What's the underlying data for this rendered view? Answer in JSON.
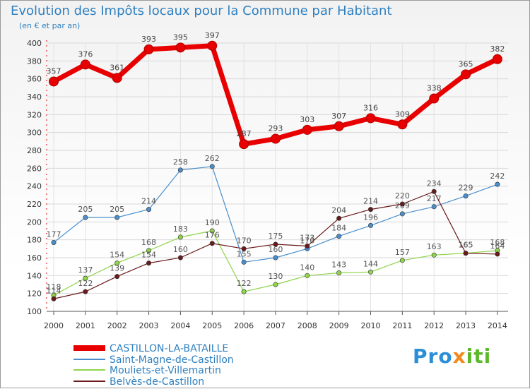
{
  "chart_data": {
    "type": "line",
    "title": "Evolution des Impôts locaux pour la Commune par Habitant",
    "subtitle": "(en € et par an)",
    "categories": [
      "2000",
      "2001",
      "2002",
      "2003",
      "2004",
      "2005",
      "2006",
      "2007",
      "2008",
      "2009",
      "2010",
      "2011",
      "2012",
      "2013",
      "2014"
    ],
    "ylim": [
      100,
      400
    ],
    "yticks": [
      100,
      120,
      140,
      160,
      180,
      200,
      220,
      240,
      260,
      280,
      300,
      320,
      340,
      360,
      380,
      400
    ],
    "grid": true,
    "series": [
      {
        "name": "CASTILLON-LA-BATAILLE",
        "color": "#e80000",
        "values": [
          357,
          376,
          361,
          393,
          395,
          397,
          287,
          293,
          303,
          307,
          316,
          309,
          338,
          365,
          382
        ]
      },
      {
        "name": "Saint-Magne-de-Castillon",
        "color": "#4a8fcc",
        "values": [
          177,
          205,
          205,
          214,
          258,
          262,
          155,
          160,
          170,
          184,
          196,
          209,
          217,
          229,
          242
        ]
      },
      {
        "name": "Mouliets-et-Villemartin",
        "color": "#8fd44a",
        "values": [
          118,
          137,
          154,
          168,
          183,
          190,
          122,
          130,
          140,
          143,
          144,
          157,
          163,
          165,
          168
        ]
      },
      {
        "name": "Belvès-de-Castillon",
        "color": "#6a1a1a",
        "values": [
          114,
          122,
          139,
          154,
          160,
          176,
          170,
          175,
          173,
          204,
          214,
          220,
          234,
          165,
          164
        ]
      }
    ]
  },
  "logo": {
    "text": "Proxiti"
  }
}
